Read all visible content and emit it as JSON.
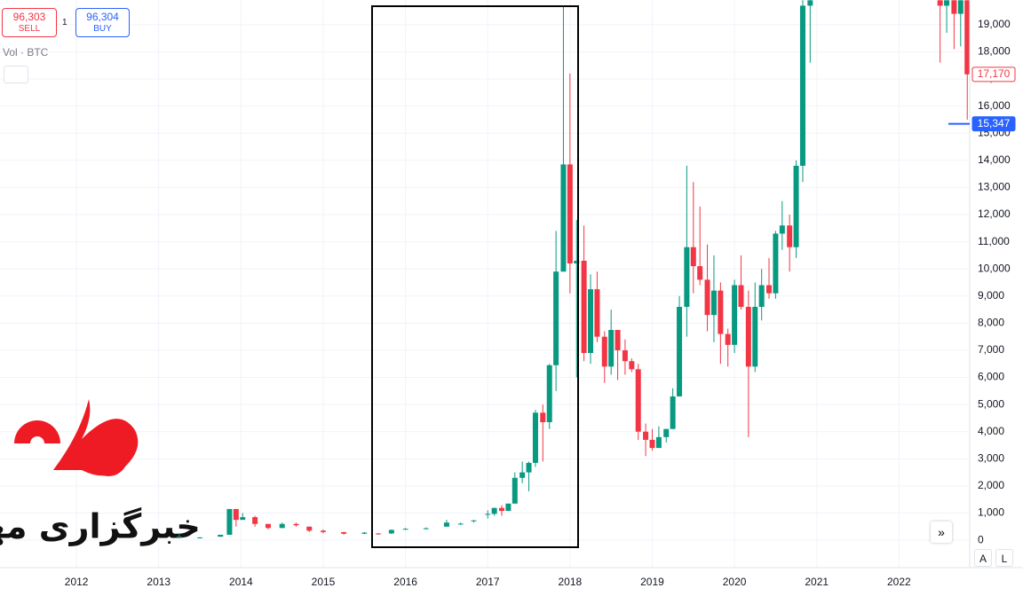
{
  "toolbar": {
    "sell_price": "96,303",
    "sell_label": "SELL",
    "quantity": "1",
    "buy_price": "96,304",
    "buy_label": "BUY",
    "volume_label": "Vol · BTC"
  },
  "buttons": {
    "auto": "A",
    "log": "L"
  },
  "watermark": {
    "text": "خبرگزاری مهر"
  },
  "chart_data": {
    "type": "candlestick",
    "up_color": "#089981",
    "down_color": "#f23645",
    "grid": true,
    "x": [
      2013.25,
      2013.5,
      2013.75,
      2013.86,
      2013.94,
      2014.02,
      2014.17,
      2014.33,
      2014.5,
      2014.67,
      2014.83,
      2015.0,
      2015.25,
      2015.5,
      2015.67,
      2015.83,
      2016.0,
      2016.25,
      2016.5,
      2016.67,
      2016.83,
      2017.0,
      2017.08,
      2017.17,
      2017.25,
      2017.33,
      2017.42,
      2017.5,
      2017.58,
      2017.67,
      2017.75,
      2017.83,
      2017.92,
      2018.0,
      2018.08,
      2018.17,
      2018.25,
      2018.33,
      2018.42,
      2018.5,
      2018.58,
      2018.67,
      2018.75,
      2018.83,
      2018.92,
      2019.0,
      2019.08,
      2019.17,
      2019.25,
      2019.33,
      2019.42,
      2019.5,
      2019.58,
      2019.67,
      2019.75,
      2019.83,
      2019.92,
      2020.0,
      2020.08,
      2020.17,
      2020.25,
      2020.33,
      2020.42,
      2020.5,
      2020.58,
      2020.67,
      2020.75,
      2020.83,
      2020.92,
      2022.5,
      2022.58,
      2022.67,
      2022.75,
      2022.83
    ],
    "open": [
      100,
      100,
      130,
      200,
      1150,
      750,
      850,
      600,
      450,
      600,
      500,
      350,
      300,
      240,
      250,
      250,
      400,
      420,
      500,
      600,
      700,
      960,
      970,
      1190,
      1080,
      1350,
      2300,
      2500,
      2850,
      4700,
      4350,
      6450,
      9900,
      13850,
      10200,
      10300,
      6900,
      9250,
      7500,
      6400,
      7750,
      7000,
      6600,
      6300,
      4000,
      3700,
      3400,
      3800,
      4100,
      5300,
      8600,
      10800,
      10100,
      9600,
      8300,
      9200,
      7600,
      7200,
      9400,
      8600,
      6400,
      8600,
      9400,
      9100,
      11300,
      11600,
      10800,
      13800,
      19700,
      19900,
      19700,
      19900,
      19400,
      19900
    ],
    "high": [
      260,
      120,
      200,
      1150,
      1150,
      1000,
      900,
      600,
      650,
      650,
      500,
      400,
      300,
      300,
      260,
      400,
      450,
      470,
      750,
      650,
      750,
      1100,
      1200,
      1290,
      1350,
      2500,
      2900,
      2900,
      4800,
      5000,
      6500,
      11400,
      19700,
      17200,
      11800,
      11600,
      9800,
      9900,
      7700,
      8500,
      7750,
      7400,
      6700,
      6500,
      4300,
      4100,
      4200,
      4100,
      5600,
      9000,
      13800,
      13200,
      12300,
      10900,
      10500,
      9500,
      7800,
      9600,
      10500,
      9200,
      9500,
      10000,
      10400,
      11400,
      12500,
      12000,
      14000,
      19900,
      19900,
      19900,
      19900,
      19900,
      19900,
      19900
    ],
    "low": [
      70,
      70,
      120,
      200,
      500,
      750,
      500,
      400,
      450,
      500,
      300,
      250,
      200,
      220,
      200,
      230,
      380,
      400,
      500,
      570,
      650,
      800,
      900,
      900,
      1080,
      1350,
      2100,
      1800,
      2700,
      2900,
      4100,
      5500,
      9900,
      9100,
      6000,
      6600,
      6500,
      7300,
      5800,
      6100,
      5900,
      6100,
      6200,
      3700,
      3100,
      3300,
      3400,
      3600,
      4100,
      5300,
      7500,
      9100,
      9400,
      7700,
      7300,
      6500,
      6400,
      6900,
      8500,
      3800,
      6200,
      8100,
      8900,
      8900,
      10700,
      9900,
      10400,
      13200,
      17600,
      17600,
      18700,
      18100,
      18200,
      15500
    ],
    "close": [
      130,
      100,
      200,
      1150,
      750,
      850,
      600,
      450,
      600,
      550,
      350,
      300,
      240,
      280,
      230,
      380,
      420,
      440,
      650,
      610,
      730,
      970,
      1190,
      1080,
      1350,
      2300,
      2500,
      2850,
      4700,
      4350,
      6450,
      9900,
      13850,
      10200,
      10300,
      6900,
      9250,
      7500,
      6400,
      7750,
      7000,
      6600,
      6300,
      4000,
      3700,
      3400,
      3800,
      4100,
      5300,
      8600,
      10800,
      10100,
      9600,
      8300,
      9200,
      7600,
      7200,
      9400,
      8600,
      6400,
      8600,
      9400,
      9100,
      11300,
      11600,
      10800,
      13800,
      19700,
      19900,
      19700,
      19900,
      19400,
      19900,
      17170
    ],
    "xlim": [
      2011.07,
      2022.86
    ],
    "xticks": [
      2012,
      2013,
      2014,
      2015,
      2016,
      2017,
      2018,
      2019,
      2020,
      2021,
      2022
    ],
    "ylim": [
      -1010,
      19910
    ],
    "yticks": [
      0,
      {
        "value": 1000,
        "label": "1,000"
      },
      {
        "value": 2000,
        "label": "2,000"
      },
      {
        "value": 3000,
        "label": "3,000"
      },
      {
        "value": 4000,
        "label": "4,000"
      },
      {
        "value": 5000,
        "label": "5,000"
      },
      {
        "value": 6000,
        "label": "6,000"
      },
      {
        "value": 7000,
        "label": "7,000"
      },
      {
        "value": 8000,
        "label": "8,000"
      },
      {
        "value": 9000,
        "label": "9,000"
      },
      {
        "value": 10000,
        "label": "10,000"
      },
      {
        "value": 11000,
        "label": "11,000"
      },
      {
        "value": 12000,
        "label": "12,000"
      },
      {
        "value": 13000,
        "label": "13,000"
      },
      {
        "value": 14000,
        "label": "14,000"
      },
      {
        "value": 15000,
        "label": "15,000"
      },
      {
        "value": 16000,
        "label": "16,000"
      },
      {
        "value": 17000,
        "label": "17,000"
      },
      {
        "value": 18000,
        "label": "18,000"
      },
      {
        "value": 19000,
        "label": "19,000"
      }
    ],
    "price_labels": [
      {
        "value": 17170,
        "label": "17,170",
        "color": "#f23645"
      },
      {
        "value": 15347,
        "label": "15,347",
        "color": "#2962ff"
      }
    ]
  }
}
